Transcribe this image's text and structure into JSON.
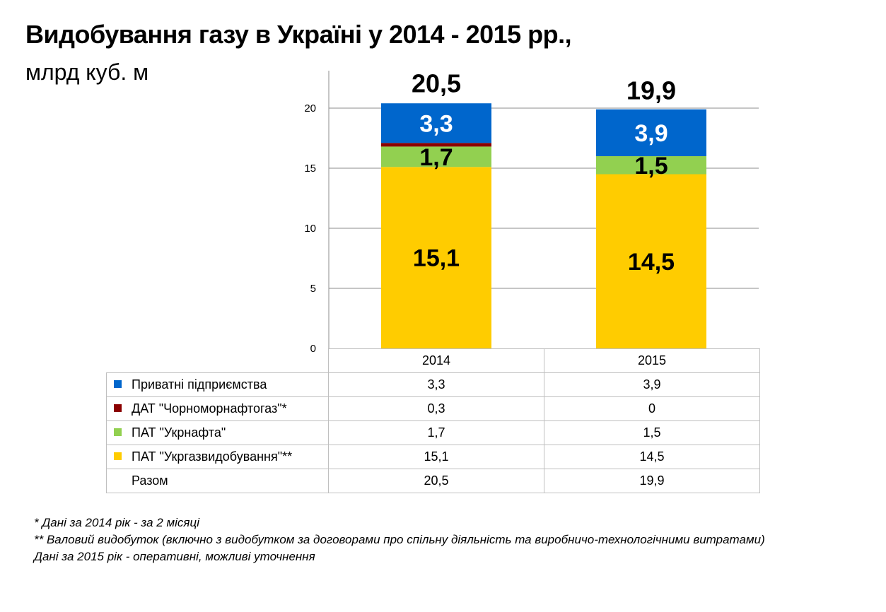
{
  "title": "Видобування газу в Україні у 2014 - 2015 рр.,",
  "subtitle": "млрд куб. м",
  "chart_data": {
    "type": "bar",
    "stacked": true,
    "categories": [
      "2014",
      "2015"
    ],
    "totals": [
      "20,5",
      "19,9"
    ],
    "total_values": [
      20.5,
      19.9
    ],
    "ylim": [
      0,
      20
    ],
    "yticks": [
      0,
      5,
      10,
      15,
      20
    ],
    "grid": true,
    "series": [
      {
        "name": "ПАТ \"Укргазвидобування\"**",
        "color": "#FFCC00",
        "values": [
          15.1,
          14.5
        ],
        "labels": [
          "15,1",
          "14,5"
        ],
        "label_color": "#000000"
      },
      {
        "name": "ПАТ \"Укрнафта\"",
        "color": "#92D050",
        "values": [
          1.7,
          1.5
        ],
        "labels": [
          "1,7",
          "1,5"
        ],
        "label_color": "#000000"
      },
      {
        "name": "ДАТ \"Чорноморнафтогаз\"*",
        "color": "#8B0000",
        "values": [
          0.3,
          0
        ],
        "labels": [
          "",
          ""
        ],
        "label_color": "#000000"
      },
      {
        "name": "Приватні підприємства",
        "color": "#0066CC",
        "values": [
          3.3,
          3.9
        ],
        "labels": [
          "3,3",
          "3,9"
        ],
        "label_color": "#FFFFFF"
      }
    ]
  },
  "table": {
    "headers": [
      "2014",
      "2015"
    ],
    "rows": [
      {
        "label": "Приватні підприємства",
        "color": "#0066CC",
        "values": [
          "3,3",
          "3,9"
        ]
      },
      {
        "label": "ДАТ \"Чорноморнафтогаз\"*",
        "color": "#8B0000",
        "values": [
          "0,3",
          "0"
        ]
      },
      {
        "label": "ПАТ \"Укрнафта\"",
        "color": "#92D050",
        "values": [
          "1,7",
          "1,5"
        ]
      },
      {
        "label": "ПАТ \"Укргазвидобування\"**",
        "color": "#FFCC00",
        "values": [
          "15,1",
          "14,5"
        ]
      },
      {
        "label": "Разом",
        "color": "",
        "values": [
          "20,5",
          "19,9"
        ]
      }
    ]
  },
  "notes": [
    "* Дані за 2014 рік - за 2 місяці",
    "** Валовий видобуток (включно з видобутком за договорами про спільну діяльність та виробничо-технологічними  витратами)",
    "Дані за 2015 рік - оперативні, можливі уточнення"
  ]
}
